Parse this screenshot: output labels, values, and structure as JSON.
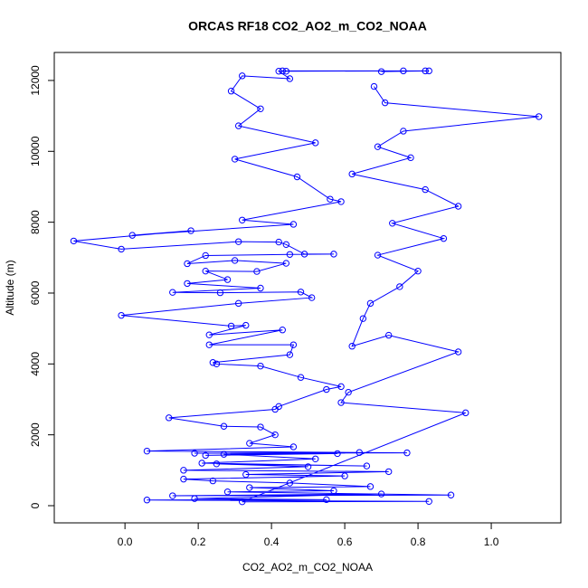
{
  "chart_data": {
    "type": "line",
    "title": "ORCAS RF18 CO2_AO2_m_CO2_NOAA",
    "x_label": "CO2_AO2_m_CO2_NOAA",
    "y_label": "Altitude (m)",
    "color": "#0000ff",
    "xlim": [
      -0.193,
      1.19
    ],
    "ylim": [
      -485,
      12790
    ],
    "xticks": [
      {
        "value": 0,
        "label": "0.0"
      },
      0.2,
      0.4,
      0.6,
      0.8,
      {
        "value": 1,
        "label": "1.0"
      }
    ],
    "yticks": [
      0,
      2000,
      4000,
      6000,
      8000,
      10000,
      12000
    ],
    "x": [
      0.43,
      0.82,
      0.83,
      0.7,
      0.76,
      0.44,
      0.42,
      0.45,
      0.32,
      0.29,
      0.37,
      0.31,
      0.52,
      0.3,
      0.47,
      0.56,
      0.59,
      0.32,
      0.46,
      0.02,
      0.18,
      -0.14,
      -0.01,
      0.31,
      0.42,
      0.44,
      0.49,
      0.57,
      0.45,
      0.22,
      0.17,
      0.3,
      0.44,
      0.36,
      0.22,
      0.28,
      0.17,
      0.37,
      0.13,
      0.26,
      0.48,
      0.51,
      0.31,
      -0.01,
      0.29,
      0.33,
      0.23,
      0.43,
      0.23,
      0.46,
      0.45,
      0.24,
      0.25,
      0.37,
      0.48,
      0.59,
      0.55,
      0.42,
      0.41,
      0.12,
      0.27,
      0.37,
      0.41,
      0.34,
      0.46,
      0.06,
      0.77,
      0.19,
      0.64,
      0.22,
      0.58,
      0.27,
      0.52,
      0.21,
      0.66,
      0.25,
      0.5,
      0.16,
      0.72,
      0.33,
      0.6,
      0.16,
      0.24,
      0.45,
      0.67,
      0.34,
      0.57,
      0.28,
      0.89,
      0.13,
      0.7,
      0.19,
      0.55,
      0.06,
      0.83,
      0.32,
      0.93,
      0.59,
      0.61,
      0.91,
      0.72,
      0.62,
      0.65,
      0.67,
      0.75,
      0.8,
      0.69,
      0.87,
      0.73,
      0.91,
      0.82,
      0.62,
      0.78,
      0.69,
      0.76,
      1.13,
      0.71,
      0.68
    ],
    "values": [
      12270,
      12270,
      12270,
      12250,
      12270,
      12260,
      12260,
      12050,
      12130,
      11700,
      11200,
      10720,
      10240,
      9780,
      9280,
      8650,
      8580,
      8060,
      7940,
      7630,
      7760,
      7470,
      7240,
      7450,
      7440,
      7370,
      7100,
      7100,
      7090,
      7060,
      6830,
      6920,
      6840,
      6610,
      6620,
      6380,
      6270,
      6140,
      6020,
      6010,
      6030,
      5870,
      5710,
      5370,
      5070,
      5090,
      4820,
      4960,
      4540,
      4540,
      4260,
      4040,
      4000,
      3940,
      3620,
      3360,
      3280,
      2800,
      2720,
      2480,
      2240,
      2220,
      2000,
      1760,
      1660,
      1540,
      1490,
      1480,
      1500,
      1420,
      1470,
      1450,
      1320,
      1200,
      1120,
      1180,
      1100,
      1000,
      960,
      880,
      840,
      750,
      700,
      640,
      540,
      510,
      420,
      390,
      300,
      280,
      330,
      200,
      170,
      160,
      120,
      110,
      2620,
      2910,
      3200,
      4340,
      4810,
      4500,
      5280,
      5710,
      6180,
      6620,
      7070,
      7540,
      7970,
      8450,
      8920,
      9360,
      9820,
      10130,
      10570,
      10980,
      11370,
      11830
    ]
  }
}
